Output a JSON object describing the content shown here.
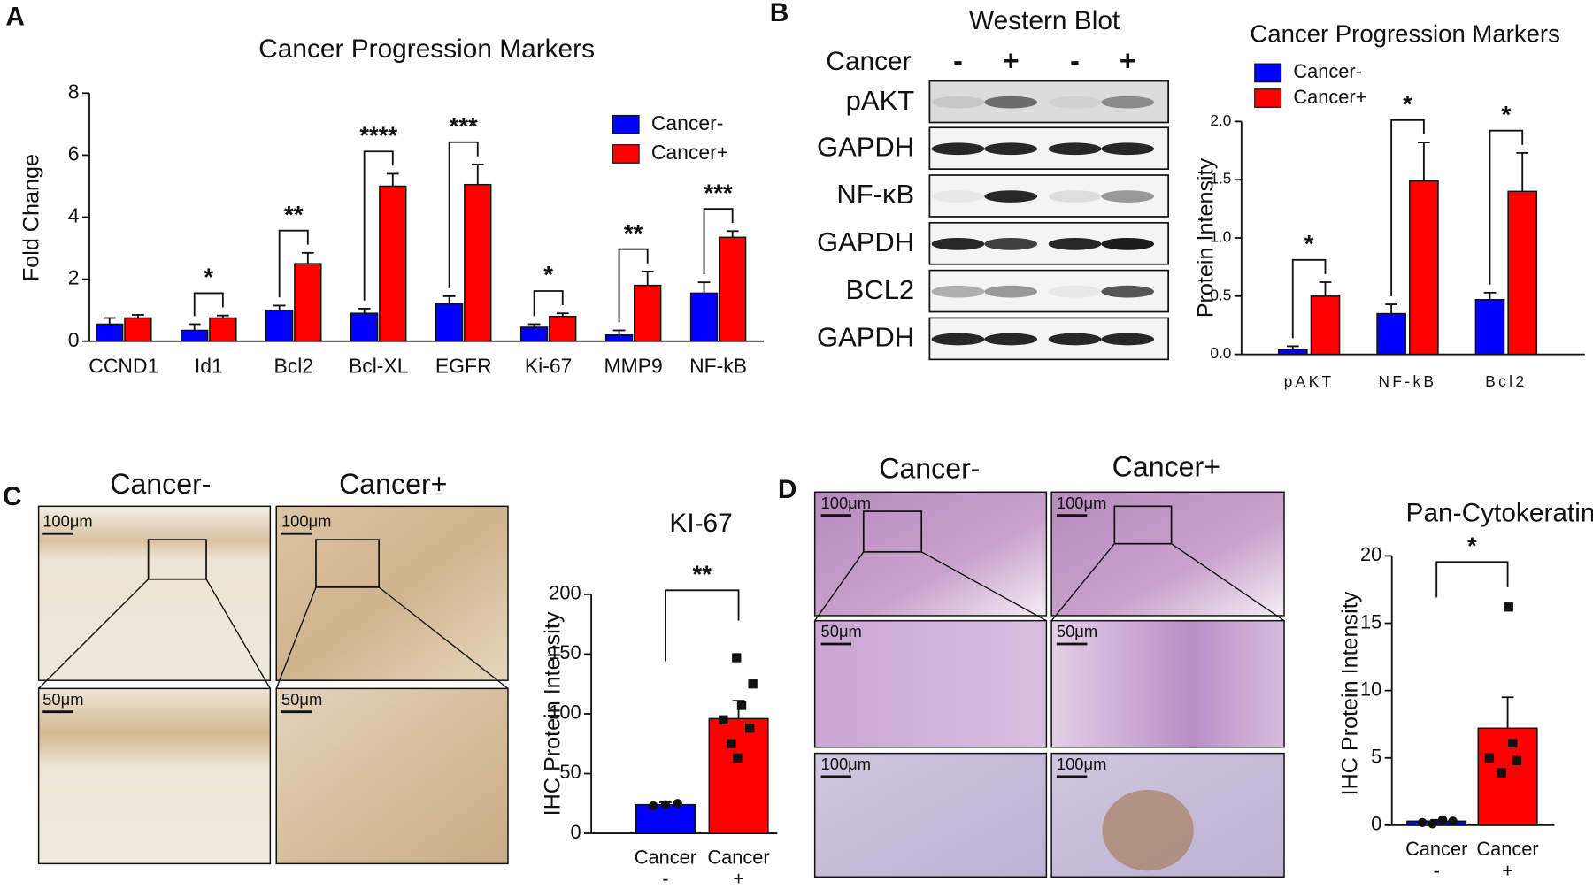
{
  "panels": {
    "a": "A",
    "b": "B",
    "c": "C",
    "d": "D"
  },
  "chart_data": [
    {
      "type": "bar",
      "title": "Cancer Progression Markers",
      "y_label": "Fold Change",
      "categories": [
        "CCND1",
        "Id1",
        "Bcl2",
        "Bcl-XL",
        "EGFR",
        "Ki-67",
        "MMP9",
        "NF-kB"
      ],
      "series": [
        {
          "name": "Cancer-",
          "color": "#0000ff",
          "values": [
            0.55,
            0.35,
            1.0,
            0.9,
            1.2,
            0.45,
            0.2,
            1.55
          ],
          "errors": [
            0.2,
            0.2,
            0.15,
            0.15,
            0.25,
            0.1,
            0.15,
            0.35
          ]
        },
        {
          "name": "Cancer+",
          "color": "#ff0000",
          "values": [
            0.75,
            0.75,
            2.5,
            5.0,
            5.05,
            0.8,
            1.8,
            3.35
          ],
          "errors": [
            0.1,
            0.08,
            0.35,
            0.4,
            0.65,
            0.1,
            0.45,
            0.2
          ]
        }
      ],
      "annotations": [
        null,
        "*",
        "**",
        "****",
        "***",
        "*",
        "**",
        "***"
      ],
      "ylim": [
        0,
        8
      ],
      "yticks": [
        0,
        2,
        4,
        6,
        8
      ],
      "legend": "upper right"
    },
    {
      "type": "bar",
      "title": "Cancer Progression Markers",
      "y_label": "Protein Intensity",
      "categories": [
        "pAKT",
        "NF-kB",
        "Bcl2"
      ],
      "series": [
        {
          "name": "Cancer-",
          "color": "#0000ff",
          "values": [
            0.04,
            0.35,
            0.47
          ],
          "errors": [
            0.03,
            0.08,
            0.06
          ]
        },
        {
          "name": "Cancer+",
          "color": "#ff0000",
          "values": [
            0.5,
            1.49,
            1.4
          ],
          "errors": [
            0.12,
            0.33,
            0.33
          ]
        }
      ],
      "annotations": [
        "*",
        "*",
        "*"
      ],
      "ylim": [
        0,
        2
      ],
      "yticks": [
        {
          "value": 0,
          "label": "0.0"
        },
        0.5,
        {
          "value": 1,
          "label": "1.0"
        },
        1.5,
        {
          "value": 2,
          "label": "2.0"
        }
      ],
      "legend": "upper left"
    },
    {
      "type": "bar",
      "title": "KI-67",
      "y_label": "IHC Protein Intensity",
      "categories": [
        [
          "Cancer",
          "-"
        ],
        [
          "Cancer",
          "+"
        ]
      ],
      "values": [
        24,
        96
      ],
      "errors": [
        2,
        15
      ],
      "colors": [
        "#0000ff",
        "#ff0000"
      ],
      "points": [
        [
          23,
          24,
          25
        ],
        [
          147,
          125,
          107,
          95,
          88,
          75,
          63
        ]
      ],
      "annotation": "**",
      "ylim": [
        0,
        200
      ],
      "yticks": [
        0,
        50,
        100,
        150,
        200
      ]
    },
    {
      "type": "bar",
      "title": "Pan-Cytokeratin",
      "y_label": "IHC Protein Intensity",
      "categories": [
        [
          "Cancer",
          "-"
        ],
        [
          "Cancer",
          "+"
        ]
      ],
      "values": [
        0.3,
        7.2
      ],
      "errors": [
        0.1,
        2.3
      ],
      "colors": [
        "#0000ff",
        "#ff0000"
      ],
      "points": [
        [
          0.2,
          0.4,
          0.3,
          0.1
        ],
        [
          16.2,
          6.1,
          5.0,
          4.8,
          3.9
        ]
      ],
      "annotation": "*",
      "ylim": [
        0,
        20
      ],
      "yticks": [
        0,
        5,
        10,
        15,
        20
      ]
    }
  ],
  "blot": {
    "title": "Western Blot",
    "group_label": "Cancer",
    "lanes": [
      "-",
      "+",
      "-",
      "+"
    ],
    "bands": [
      "pAKT",
      "GAPDH",
      "NF-κB",
      "GAPDH",
      "BCL2",
      "GAPDH"
    ]
  },
  "ihc_c": {
    "columns": [
      "Cancer-",
      "Cancer+"
    ],
    "scale_bars": [
      [
        "100μm",
        "100μm"
      ],
      [
        "50μm",
        "50μm"
      ]
    ]
  },
  "ihc_d": {
    "columns": [
      "Cancer-",
      "Cancer+"
    ],
    "scale_bars": [
      [
        "100μm",
        "100μm"
      ],
      [
        "50μm",
        "50μm"
      ],
      [
        "100μm",
        "100μm"
      ]
    ]
  }
}
